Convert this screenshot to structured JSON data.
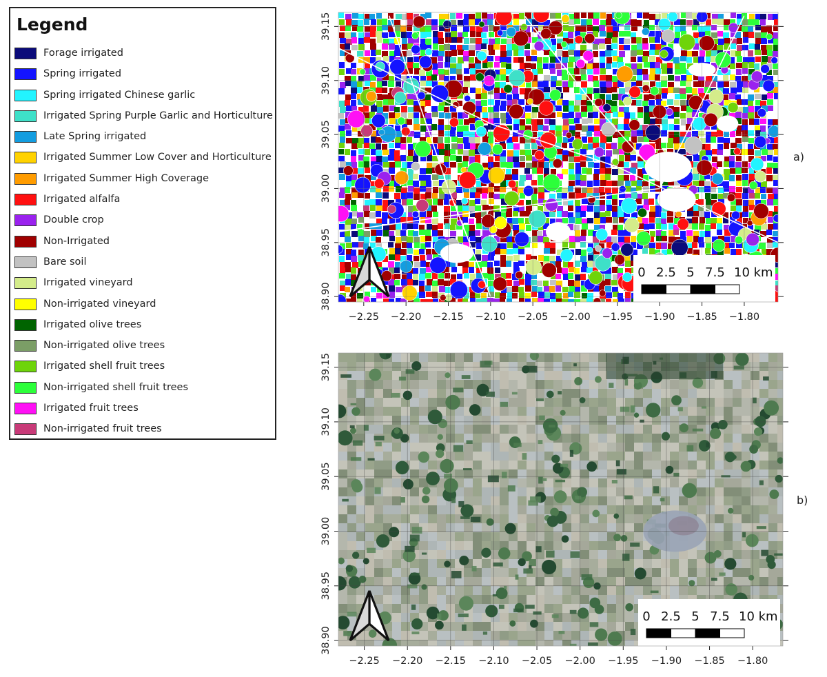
{
  "legend": {
    "title": "Legend",
    "items": [
      {
        "label": "Forage irrigated",
        "color": "#0b0b7a"
      },
      {
        "label": "Spring irrigated",
        "color": "#1414ff"
      },
      {
        "label": "Spring irrigated Chinese garlic",
        "color": "#22f4ff"
      },
      {
        "label": "Irrigated Spring Purple Garlic and Horticulture",
        "color": "#3ee0c8"
      },
      {
        "label": "Late Spring irrigated",
        "color": "#139de0"
      },
      {
        "label": "Irrigated Summer Low Cover and Horticulture",
        "color": "#ffd200"
      },
      {
        "label": "Irrigated Summer High Coverage",
        "color": "#ff9c00"
      },
      {
        "label": "Irrigated alfalfa",
        "color": "#ff1010"
      },
      {
        "label": "Double crop",
        "color": "#9a22ee"
      },
      {
        "label": "Non-Irrigated",
        "color": "#a00000"
      },
      {
        "label": "Bare soil",
        "color": "#c2c2c2"
      },
      {
        "label": "Irrigated vineyard",
        "color": "#d4ec8a"
      },
      {
        "label": "Non-irrigated vineyard",
        "color": "#ffff00"
      },
      {
        "label": "Irrigated olive trees",
        "color": "#006400"
      },
      {
        "label": "Non-irrigated olive trees",
        "color": "#7b9e66"
      },
      {
        "label": "Irrigated shell fruit trees",
        "color": "#6ed40a"
      },
      {
        "label": "Non-irrigated shell fruit trees",
        "color": "#2cff3a"
      },
      {
        "label": "Irrigated fruit trees",
        "color": "#ff10f5"
      },
      {
        "label": "Non-irrigated fruit trees",
        "color": "#c83a78"
      }
    ]
  },
  "axes": {
    "x_ticks": [
      "−2.25",
      "−2.20",
      "−2.15",
      "−2.10",
      "−2.05",
      "−2.00",
      "−1.95",
      "−1.90",
      "−1.85",
      "−1.80"
    ],
    "y_ticks": [
      "39.15",
      "39.10",
      "39.05",
      "39.00",
      "38.95",
      "38.90"
    ]
  },
  "maps": [
    {
      "label": "a)",
      "type": "classification",
      "scalebar": {
        "ticks": [
          "0",
          "2.5",
          "5",
          "7.5",
          "10 km"
        ]
      }
    },
    {
      "label": "b)",
      "type": "satellite",
      "scalebar": {
        "ticks": [
          "0",
          "2.5",
          "5",
          "7.5",
          "10 km"
        ]
      }
    }
  ],
  "chart_data": [
    {
      "type": "other",
      "title": "",
      "xlabel": "",
      "ylabel": "",
      "xlim": [
        -2.28,
        -1.76
      ],
      "ylim": [
        38.895,
        39.163
      ],
      "x_ticks": [
        -2.25,
        -2.2,
        -2.15,
        -2.1,
        -2.05,
        -2.0,
        -1.95,
        -1.9,
        -1.85,
        -1.8
      ],
      "y_ticks": [
        39.15,
        39.1,
        39.05,
        39.0,
        38.95,
        38.9
      ],
      "grid": true
    },
    {
      "type": "other",
      "title": "",
      "xlabel": "",
      "ylabel": "",
      "xlim": [
        -2.28,
        -1.765
      ],
      "ylim": [
        38.895,
        39.163
      ],
      "x_ticks": [
        -2.25,
        -2.2,
        -2.15,
        -2.1,
        -2.05,
        -2.0,
        -1.95,
        -1.9,
        -1.85,
        -1.8
      ],
      "y_ticks": [
        39.15,
        39.1,
        39.05,
        39.0,
        38.95,
        38.9
      ],
      "grid": true
    }
  ]
}
